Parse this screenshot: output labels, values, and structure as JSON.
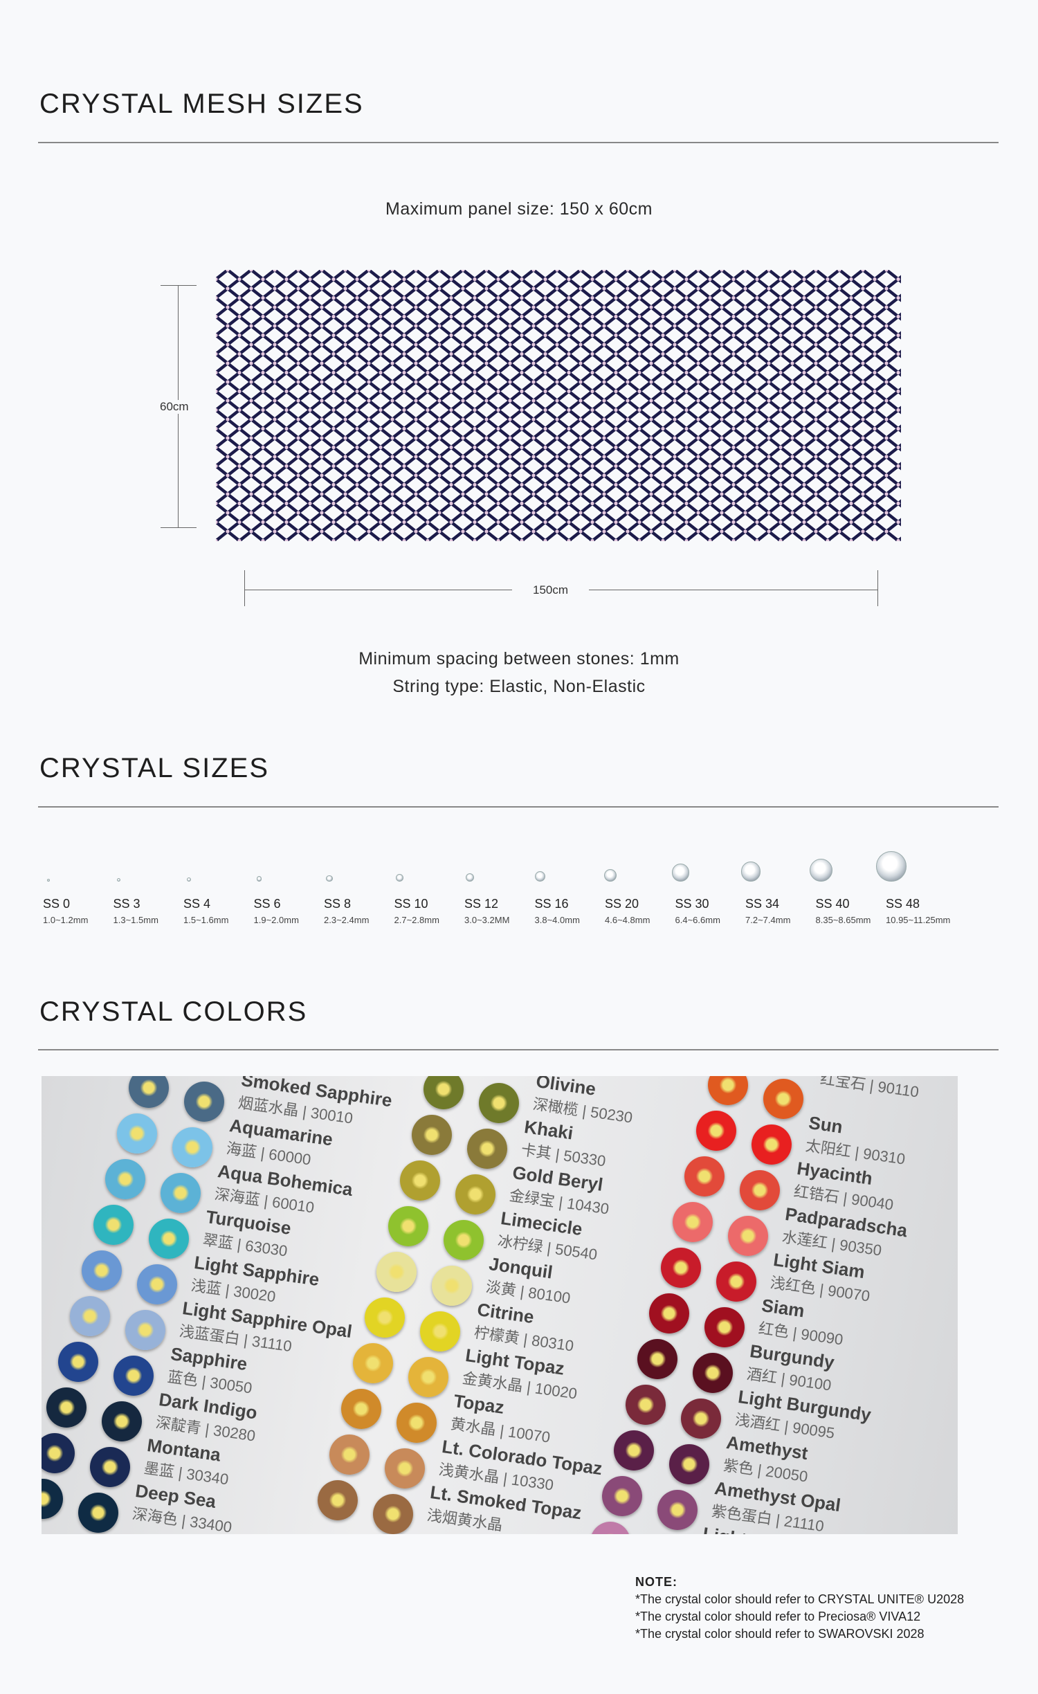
{
  "mesh": {
    "title": "CRYSTAL MESH SIZES",
    "max_panel": "Maximum panel size: 150 x 60cm",
    "height_label": "60cm",
    "width_label": "150cm",
    "spacing": "Minimum spacing between stones: 1mm",
    "string_type": "String type: Elastic, Non-Elastic",
    "mesh_color": "#1c1b4a",
    "stone_color": "#e6c9e0"
  },
  "sizes": {
    "title": "CRYSTAL SIZES",
    "items": [
      {
        "name": "SS 0",
        "mm": "1.0~1.2mm"
      },
      {
        "name": "SS 3",
        "mm": "1.3~1.5mm"
      },
      {
        "name": "SS 4",
        "mm": "1.5~1.6mm"
      },
      {
        "name": "SS 6",
        "mm": "1.9~2.0mm"
      },
      {
        "name": "SS 8",
        "mm": "2.3~2.4mm"
      },
      {
        "name": "SS 10",
        "mm": "2.7~2.8mm"
      },
      {
        "name": "SS 12",
        "mm": "3.0~3.2MM"
      },
      {
        "name": "SS 16",
        "mm": "3.8~4.0mm"
      },
      {
        "name": "SS 20",
        "mm": "4.6~4.8mm"
      },
      {
        "name": "SS 30",
        "mm": "6.4~6.6mm"
      },
      {
        "name": "SS 34",
        "mm": "7.2~7.4mm"
      },
      {
        "name": "SS 40",
        "mm": "8.35~8.65mm"
      },
      {
        "name": "SS 48",
        "mm": "10.95~11.25mm"
      }
    ]
  },
  "colors": {
    "title": "CRYSTAL COLORS",
    "columns": [
      [
        {
          "en": "Smoked Sapphire",
          "cn": "烟蓝水晶 | 30010",
          "c": "#4a6a86"
        },
        {
          "en": "Aquamarine",
          "cn": "海蓝 | 60000",
          "c": "#7cc3e8"
        },
        {
          "en": "Aqua Bohemica",
          "cn": "深海蓝 | 60010",
          "c": "#5cb2d6"
        },
        {
          "en": "Turquoise",
          "cn": "翠蓝 | 63030",
          "c": "#2fb5bf"
        },
        {
          "en": "Light Sapphire",
          "cn": "浅蓝 | 30020",
          "c": "#6a98d4"
        },
        {
          "en": "Light Sapphire Opal",
          "cn": "浅蓝蛋白 | 31110",
          "c": "#97b2d8"
        },
        {
          "en": "Sapphire",
          "cn": "蓝色 | 30050",
          "c": "#22458f"
        },
        {
          "en": "Dark Indigo",
          "cn": "深靛青 | 30280",
          "c": "#15283f"
        },
        {
          "en": "Montana",
          "cn": "墨蓝 | 30340",
          "c": "#1a2a55"
        },
        {
          "en": "Deep Sea",
          "cn": "深海色 | 33400",
          "c": "#0f2b44"
        }
      ],
      [
        {
          "en": "Olivine",
          "cn": "深橄榄 | 50230",
          "c": "#6f7a2a"
        },
        {
          "en": "Khaki",
          "cn": "卡其 | 50330",
          "c": "#8a7a3a"
        },
        {
          "en": "Gold Beryl",
          "cn": "金绿宝 | 10430",
          "c": "#b0a030"
        },
        {
          "en": "Limecicle",
          "cn": "冰柠绿 | 50540",
          "c": "#8fc22e"
        },
        {
          "en": "Jonquil",
          "cn": "淡黄 | 80100",
          "c": "#e8e29a"
        },
        {
          "en": "Citrine",
          "cn": "柠檬黄 | 80310",
          "c": "#e2d424"
        },
        {
          "en": "Light Topaz",
          "cn": "金黄水晶 | 10020",
          "c": "#e4b43a"
        },
        {
          "en": "Topaz",
          "cn": "黄水晶 | 10070",
          "c": "#d08a2a"
        },
        {
          "en": "Lt. Colorado Topaz",
          "cn": "浅黄水晶 | 10330",
          "c": "#c88a5a"
        },
        {
          "en": "Lt. Smoked Topaz",
          "cn": "浅烟黄水晶",
          "c": "#9a6a42"
        }
      ],
      [
        {
          "en": "",
          "cn": "红宝石 | 90110",
          "c": "#e05a20"
        },
        {
          "en": "Sun",
          "cn": "太阳红 | 90310",
          "c": "#e82020"
        },
        {
          "en": "Hyacinth",
          "cn": "红锆石 | 90040",
          "c": "#e24a3a"
        },
        {
          "en": "Padparadscha",
          "cn": "水莲红 | 90350",
          "c": "#ec6a6a"
        },
        {
          "en": "Light Siam",
          "cn": "浅红色 | 90070",
          "c": "#c81c2a"
        },
        {
          "en": "Siam",
          "cn": "红色 | 90090",
          "c": "#a01020"
        },
        {
          "en": "Burgundy",
          "cn": "酒红 | 90100",
          "c": "#5a1020"
        },
        {
          "en": "Light Burgundy",
          "cn": "浅酒红 | 90095",
          "c": "#7a2a3a"
        },
        {
          "en": "Amethyst",
          "cn": "紫色 | 20050",
          "c": "#5a2048"
        },
        {
          "en": "Amethyst Opal",
          "cn": "紫色蛋白 | 21110",
          "c": "#8a4a78"
        },
        {
          "en": "Light Amethyst",
          "cn": "",
          "c": "#c07aa8"
        }
      ]
    ]
  },
  "note": {
    "title": "NOTE:",
    "lines": [
      "*The crystal color should refer to CRYSTAL UNITE® U2028",
      "*The crystal color should refer to Preciosa® VIVA12",
      "*The crystal color should refer to SWAROVSKI 2028"
    ]
  }
}
